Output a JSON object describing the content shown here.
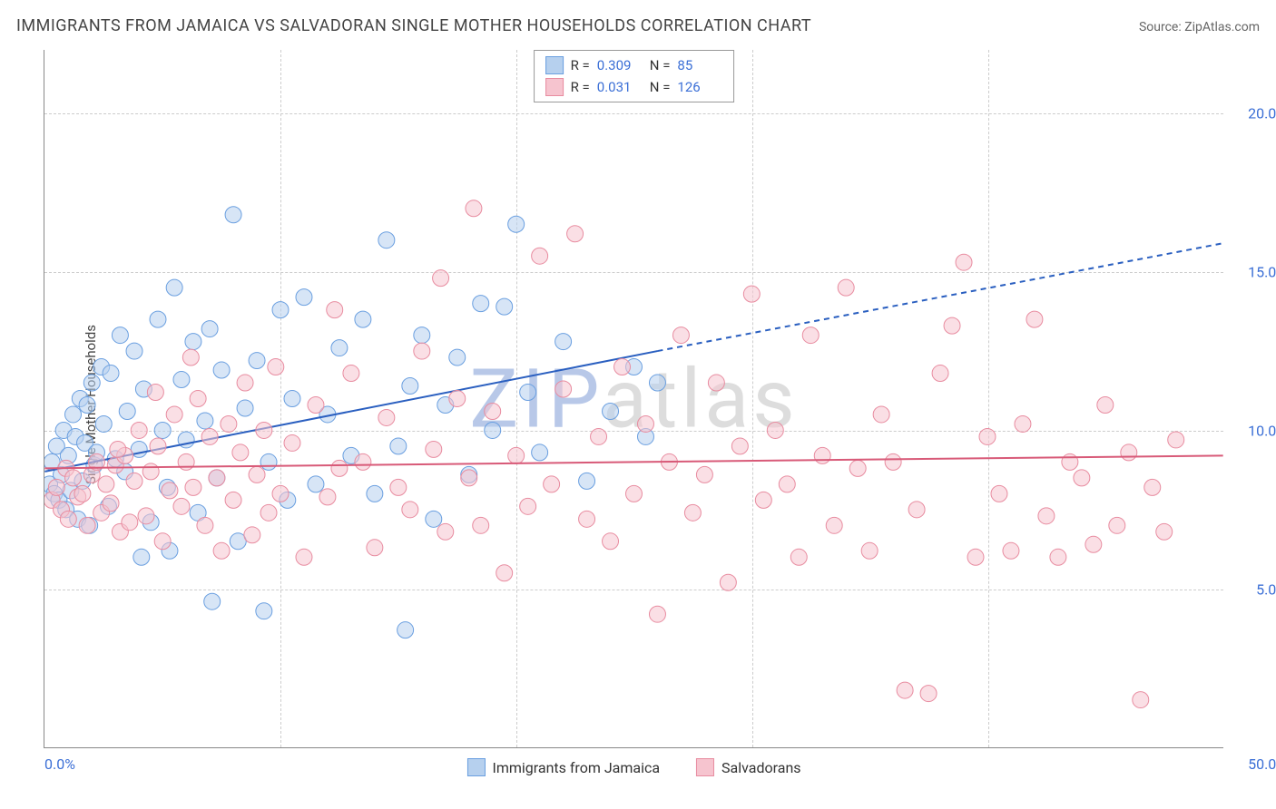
{
  "chart": {
    "title": "IMMIGRANTS FROM JAMAICA VS SALVADORAN SINGLE MOTHER HOUSEHOLDS CORRELATION CHART",
    "source": "Source: ZipAtlas.com",
    "y_axis_label": "Single Mother Households",
    "type": "scatter",
    "background_color": "#ffffff",
    "grid_color": "#cccccc",
    "axis_color": "#888888",
    "text_color": "#444444",
    "title_fontsize": 18,
    "label_fontsize": 15,
    "tick_fontsize": 16,
    "xlim": [
      0,
      50
    ],
    "ylim": [
      0,
      22
    ],
    "x_ticks": [
      {
        "value": 0,
        "label": "0.0%"
      },
      {
        "value": 50,
        "label": "50.0%"
      }
    ],
    "x_minor_ticks": [
      10,
      20,
      30,
      40
    ],
    "y_ticks": [
      {
        "value": 5,
        "label": "5.0%"
      },
      {
        "value": 10,
        "label": "10.0%"
      },
      {
        "value": 15,
        "label": "15.0%"
      },
      {
        "value": 20,
        "label": "20.0%"
      }
    ],
    "tick_label_color": "#3b6fd6",
    "watermark": {
      "text": "ZIPatlas",
      "prefix": "ZIP",
      "suffix": "atlas",
      "prefix_color": "#b8c8e8",
      "suffix_color": "#dddddd",
      "fontsize": 90
    },
    "top_legend": {
      "rows": [
        {
          "swatch_fill": "#b6d0ee",
          "swatch_border": "#6a9fe0",
          "r_label": "R =",
          "r_value": "0.309",
          "n_label": "N =",
          "n_value": "85"
        },
        {
          "swatch_fill": "#f6c4cf",
          "swatch_border": "#e88ca0",
          "r_label": "R =",
          "r_value": "0.031",
          "n_label": "N =",
          "n_value": "126"
        }
      ],
      "value_color": "#3b6fd6"
    },
    "bottom_legend": {
      "items": [
        {
          "swatch_fill": "#b6d0ee",
          "swatch_border": "#6a9fe0",
          "label": "Immigrants from Jamaica"
        },
        {
          "swatch_fill": "#f6c4cf",
          "swatch_border": "#e88ca0",
          "label": "Salvadorans"
        }
      ]
    },
    "marker_radius": 9,
    "marker_opacity": 0.55,
    "series": [
      {
        "name": "jamaica",
        "fill": "#b6d0ee",
        "stroke": "#6a9fe0",
        "trend_line": {
          "x1": 0,
          "y1": 8.7,
          "x2": 26,
          "y2": 12.5,
          "x_dash_to": 50,
          "y_dash_to": 15.9,
          "color": "#2a5fc0",
          "width": 2
        },
        "points": [
          [
            0.2,
            8.3
          ],
          [
            0.3,
            9.0
          ],
          [
            0.4,
            8.0
          ],
          [
            0.5,
            9.5
          ],
          [
            0.6,
            7.8
          ],
          [
            0.7,
            8.6
          ],
          [
            0.8,
            10.0
          ],
          [
            0.9,
            7.5
          ],
          [
            1.0,
            9.2
          ],
          [
            1.1,
            8.1
          ],
          [
            1.2,
            10.5
          ],
          [
            1.3,
            9.8
          ],
          [
            1.4,
            7.2
          ],
          [
            1.5,
            11.0
          ],
          [
            1.6,
            8.4
          ],
          [
            1.7,
            9.6
          ],
          [
            1.8,
            10.8
          ],
          [
            1.9,
            7.0
          ],
          [
            2.0,
            11.5
          ],
          [
            2.1,
            8.9
          ],
          [
            2.2,
            9.3
          ],
          [
            2.4,
            12.0
          ],
          [
            2.5,
            10.2
          ],
          [
            2.7,
            7.6
          ],
          [
            2.8,
            11.8
          ],
          [
            3.0,
            9.1
          ],
          [
            3.2,
            13.0
          ],
          [
            3.4,
            8.7
          ],
          [
            3.5,
            10.6
          ],
          [
            3.8,
            12.5
          ],
          [
            4.0,
            9.4
          ],
          [
            4.2,
            11.3
          ],
          [
            4.5,
            7.1
          ],
          [
            4.8,
            13.5
          ],
          [
            5.0,
            10.0
          ],
          [
            5.2,
            8.2
          ],
          [
            5.5,
            14.5
          ],
          [
            5.8,
            11.6
          ],
          [
            6.0,
            9.7
          ],
          [
            6.3,
            12.8
          ],
          [
            6.5,
            7.4
          ],
          [
            6.8,
            10.3
          ],
          [
            7.0,
            13.2
          ],
          [
            7.3,
            8.5
          ],
          [
            7.5,
            11.9
          ],
          [
            8.0,
            16.8
          ],
          [
            8.2,
            6.5
          ],
          [
            8.5,
            10.7
          ],
          [
            9.0,
            12.2
          ],
          [
            9.3,
            4.3
          ],
          [
            9.5,
            9.0
          ],
          [
            10.0,
            13.8
          ],
          [
            10.3,
            7.8
          ],
          [
            10.5,
            11.0
          ],
          [
            11.0,
            14.2
          ],
          [
            11.5,
            8.3
          ],
          [
            12.0,
            10.5
          ],
          [
            12.5,
            12.6
          ],
          [
            13.0,
            9.2
          ],
          [
            13.5,
            13.5
          ],
          [
            14.0,
            8.0
          ],
          [
            14.5,
            16.0
          ],
          [
            15.0,
            9.5
          ],
          [
            15.3,
            3.7
          ],
          [
            15.5,
            11.4
          ],
          [
            16.0,
            13.0
          ],
          [
            16.5,
            7.2
          ],
          [
            17.0,
            10.8
          ],
          [
            17.5,
            12.3
          ],
          [
            18.0,
            8.6
          ],
          [
            18.5,
            14.0
          ],
          [
            19.0,
            10.0
          ],
          [
            19.5,
            13.9
          ],
          [
            20.0,
            16.5
          ],
          [
            20.5,
            11.2
          ],
          [
            21.0,
            9.3
          ],
          [
            22.0,
            12.8
          ],
          [
            23.0,
            8.4
          ],
          [
            24.0,
            10.6
          ],
          [
            25.0,
            12.0
          ],
          [
            25.5,
            9.8
          ],
          [
            26.0,
            11.5
          ],
          [
            7.1,
            4.6
          ],
          [
            5.3,
            6.2
          ],
          [
            4.1,
            6.0
          ]
        ]
      },
      {
        "name": "salvadoran",
        "fill": "#f6c4cf",
        "stroke": "#e88ca0",
        "trend_line": {
          "x1": 0,
          "y1": 8.8,
          "x2": 50,
          "y2": 9.2,
          "color": "#d85a78",
          "width": 2
        },
        "points": [
          [
            0.3,
            7.8
          ],
          [
            0.5,
            8.2
          ],
          [
            0.7,
            7.5
          ],
          [
            0.9,
            8.8
          ],
          [
            1.0,
            7.2
          ],
          [
            1.2,
            8.5
          ],
          [
            1.4,
            7.9
          ],
          [
            1.6,
            8.0
          ],
          [
            1.8,
            7.0
          ],
          [
            2.0,
            8.6
          ],
          [
            2.2,
            9.0
          ],
          [
            2.4,
            7.4
          ],
          [
            2.6,
            8.3
          ],
          [
            2.8,
            7.7
          ],
          [
            3.0,
            8.9
          ],
          [
            3.2,
            6.8
          ],
          [
            3.4,
            9.2
          ],
          [
            3.6,
            7.1
          ],
          [
            3.8,
            8.4
          ],
          [
            4.0,
            10.0
          ],
          [
            4.3,
            7.3
          ],
          [
            4.5,
            8.7
          ],
          [
            4.8,
            9.5
          ],
          [
            5.0,
            6.5
          ],
          [
            5.3,
            8.1
          ],
          [
            5.5,
            10.5
          ],
          [
            5.8,
            7.6
          ],
          [
            6.0,
            9.0
          ],
          [
            6.3,
            8.2
          ],
          [
            6.5,
            11.0
          ],
          [
            6.8,
            7.0
          ],
          [
            7.0,
            9.8
          ],
          [
            7.3,
            8.5
          ],
          [
            7.5,
            6.2
          ],
          [
            7.8,
            10.2
          ],
          [
            8.0,
            7.8
          ],
          [
            8.3,
            9.3
          ],
          [
            8.5,
            11.5
          ],
          [
            8.8,
            6.7
          ],
          [
            9.0,
            8.6
          ],
          [
            9.3,
            10.0
          ],
          [
            9.5,
            7.4
          ],
          [
            9.8,
            12.0
          ],
          [
            10.0,
            8.0
          ],
          [
            10.5,
            9.6
          ],
          [
            11.0,
            6.0
          ],
          [
            11.5,
            10.8
          ],
          [
            12.0,
            7.9
          ],
          [
            12.5,
            8.8
          ],
          [
            13.0,
            11.8
          ],
          [
            13.5,
            9.0
          ],
          [
            14.0,
            6.3
          ],
          [
            14.5,
            10.4
          ],
          [
            15.0,
            8.2
          ],
          [
            15.5,
            7.5
          ],
          [
            16.0,
            12.5
          ],
          [
            16.5,
            9.4
          ],
          [
            17.0,
            6.8
          ],
          [
            17.5,
            11.0
          ],
          [
            18.0,
            8.5
          ],
          [
            18.5,
            7.0
          ],
          [
            19.0,
            10.6
          ],
          [
            19.5,
            5.5
          ],
          [
            20.0,
            9.2
          ],
          [
            20.5,
            7.6
          ],
          [
            21.0,
            15.5
          ],
          [
            21.5,
            8.3
          ],
          [
            22.0,
            11.3
          ],
          [
            22.5,
            16.2
          ],
          [
            23.0,
            7.2
          ],
          [
            23.5,
            9.8
          ],
          [
            24.0,
            6.5
          ],
          [
            24.5,
            12.0
          ],
          [
            25.0,
            8.0
          ],
          [
            25.5,
            10.2
          ],
          [
            26.0,
            4.2
          ],
          [
            26.5,
            9.0
          ],
          [
            27.0,
            13.0
          ],
          [
            27.5,
            7.4
          ],
          [
            28.0,
            8.6
          ],
          [
            28.5,
            11.5
          ],
          [
            29.0,
            5.2
          ],
          [
            29.5,
            9.5
          ],
          [
            30.0,
            14.3
          ],
          [
            30.5,
            7.8
          ],
          [
            31.0,
            10.0
          ],
          [
            31.5,
            8.3
          ],
          [
            32.0,
            6.0
          ],
          [
            32.5,
            13.0
          ],
          [
            33.0,
            9.2
          ],
          [
            33.5,
            7.0
          ],
          [
            34.0,
            14.5
          ],
          [
            34.5,
            8.8
          ],
          [
            35.0,
            6.2
          ],
          [
            35.5,
            10.5
          ],
          [
            36.0,
            9.0
          ],
          [
            36.5,
            1.8
          ],
          [
            37.0,
            7.5
          ],
          [
            37.5,
            1.7
          ],
          [
            38.0,
            11.8
          ],
          [
            38.5,
            13.3
          ],
          [
            39.0,
            15.3
          ],
          [
            39.5,
            6.0
          ],
          [
            40.0,
            9.8
          ],
          [
            40.5,
            8.0
          ],
          [
            41.0,
            6.2
          ],
          [
            41.5,
            10.2
          ],
          [
            42.0,
            13.5
          ],
          [
            42.5,
            7.3
          ],
          [
            43.0,
            6.0
          ],
          [
            43.5,
            9.0
          ],
          [
            44.0,
            8.5
          ],
          [
            44.5,
            6.4
          ],
          [
            45.0,
            10.8
          ],
          [
            45.5,
            7.0
          ],
          [
            46.0,
            9.3
          ],
          [
            46.5,
            1.5
          ],
          [
            47.0,
            8.2
          ],
          [
            47.5,
            6.8
          ],
          [
            48.0,
            9.7
          ],
          [
            3.1,
            9.4
          ],
          [
            4.7,
            11.2
          ],
          [
            6.2,
            12.3
          ],
          [
            12.3,
            13.8
          ],
          [
            18.2,
            17.0
          ],
          [
            16.8,
            14.8
          ]
        ]
      }
    ]
  }
}
